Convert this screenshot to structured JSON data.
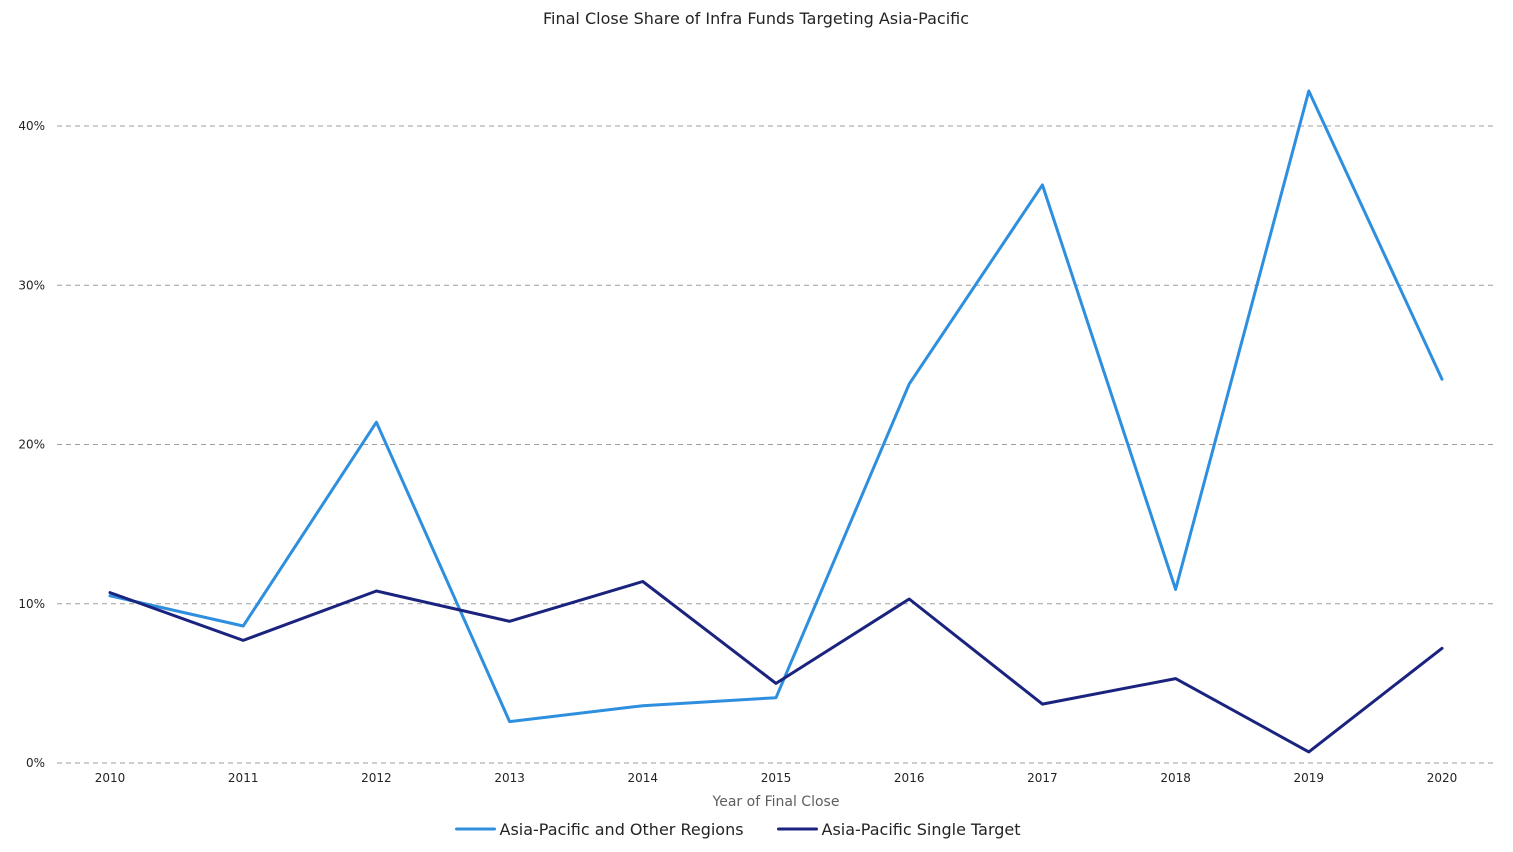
{
  "chart_data": {
    "type": "line",
    "title": "Final Close Share of Infra Funds Targeting Asia-Pacific",
    "xlabel": "Year of Final Close",
    "ylabel": "",
    "x": [
      "2010",
      "2011",
      "2012",
      "2013",
      "2014",
      "2015",
      "2016",
      "2017",
      "2018",
      "2019",
      "2020"
    ],
    "ylim": [
      0,
      0.45
    ],
    "yticks": [
      0,
      0.1,
      0.2,
      0.3,
      0.4
    ],
    "ytick_labels": [
      "0%",
      "10%",
      "20%",
      "30%",
      "40%"
    ],
    "grid": true,
    "legend_position": "bottom",
    "series": [
      {
        "name": "Asia-Pacific and Other Regions",
        "color": "#2e8fdf",
        "values": [
          0.105,
          0.086,
          0.214,
          0.026,
          0.036,
          0.041,
          0.238,
          0.363,
          0.109,
          0.422,
          0.241
        ]
      },
      {
        "name": "Asia-Pacific Single Target",
        "color": "#1a237e",
        "values": [
          0.107,
          0.077,
          0.108,
          0.089,
          0.114,
          0.05,
          0.103,
          0.037,
          0.053,
          0.007,
          0.072
        ]
      }
    ]
  }
}
